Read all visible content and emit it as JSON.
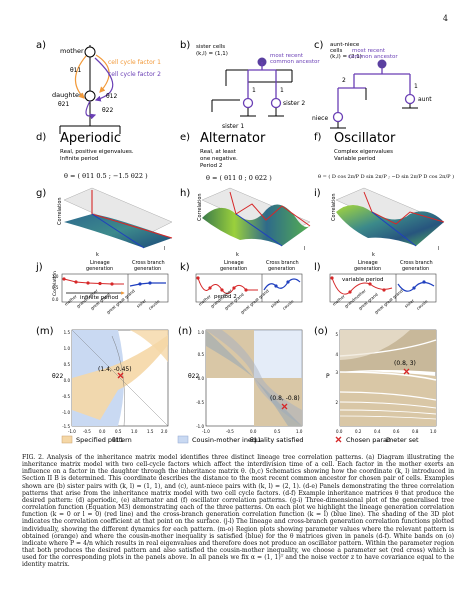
{
  "page_number": "4",
  "panels": {
    "a": {
      "letter": "a)",
      "mother": "mother",
      "daughter": "daughter",
      "theta11": "θ11",
      "theta21": "θ21",
      "theta12": "θ12",
      "theta22": "θ22",
      "factor1": "cell cycle factor 1",
      "factor2": "cell cycle factor 2"
    },
    "b": {
      "letter": "b)",
      "title1": "sister cells",
      "title2": "(k,l) = (1,1)",
      "ancestor1": "most recent",
      "ancestor2": "common ancestor",
      "sister1": "sister 1",
      "sister2": "sister 2",
      "edge1": "1",
      "edge2": "1"
    },
    "c": {
      "letter": "c)",
      "title1": "aunt-niece",
      "title2": "cells",
      "title3": "(k,l) = (2,1)",
      "ancestor1": "most recent",
      "ancestor2": "common ancestor",
      "aunt": "aunt",
      "niece": "niece",
      "edge2": "2",
      "edge1": "1"
    },
    "d": {
      "letter": "d)",
      "title": "Aperiodic",
      "desc1": "Real, positive eigenvalues.",
      "desc2": "Infinite period",
      "matrix": "θ = ( θ11  0.5 ; −1.5  θ22 )"
    },
    "e": {
      "letter": "e)",
      "title": "Alternator",
      "desc1": "Real, at least",
      "desc2": "one negative.",
      "desc3": "Period 2",
      "matrix": "θ = ( θ11  0 ; 0  θ22 )"
    },
    "f": {
      "letter": "f)",
      "title": "Oscillator",
      "desc1": "Complex eigenvalues",
      "desc2": "Variable period",
      "matrix": "θ = ( D cos 2π/P   D sin 2π/P ; −D sin 2π/P   D cos 2π/P )"
    },
    "g": {
      "letter": "g)",
      "zlabel": "Correlation",
      "xl": "k",
      "yl": "l"
    },
    "h": {
      "letter": "h)",
      "zlabel": "Correlation",
      "xl": "k",
      "yl": "l"
    },
    "i": {
      "letter": "i)",
      "zlabel": "Correlation",
      "xl": "k",
      "yl": "l"
    },
    "j": {
      "letter": "j)",
      "lin": "Lineage",
      "gen": "generation",
      "cross": "Cross branch",
      "cgen": "generation",
      "ylabel": "Correlation",
      "period": "infinite period",
      "yticks": [
        "1.0",
        "0.5",
        "0.0"
      ]
    },
    "k": {
      "letter": "k)",
      "lin": "Lineage",
      "gen": "generation",
      "cross": "Cross branch",
      "cgen": "generation",
      "period": "period 2"
    },
    "l": {
      "letter": "l)",
      "lin": "Lineage",
      "gen": "generation",
      "cross": "Cross branch",
      "cgen": "generation",
      "period": "variable period"
    },
    "xcats": [
      "mother",
      "grandmother",
      "great grand",
      "great great grand",
      "sister",
      "cousin"
    ],
    "m": {
      "letter": "(m)",
      "xlabel": "θ11",
      "ylabel": "θ22",
      "point": "(1.4, -0.45)",
      "xticks": [
        "-1.0",
        "-0.5",
        "0.0",
        "0.5",
        "1.0",
        "1.5",
        "2.0"
      ],
      "yticks": [
        "1.5",
        "1.0",
        "0.5",
        "0.0",
        "-0.5",
        "-1.0",
        "-1.5"
      ]
    },
    "n": {
      "letter": "(n)",
      "xlabel": "θ11",
      "ylabel": "θ22",
      "point": "(0.8, -0.8)",
      "xticks": [
        "-1.0",
        "-0.5",
        "0.0",
        "0.5",
        "1.0"
      ],
      "yticks": [
        "1.0",
        "0.5",
        "0.0",
        "-0.5",
        "-1.0"
      ]
    },
    "o": {
      "letter": "(o)",
      "xlabel": "D",
      "ylabel": "P",
      "point": "(0.8, 3)",
      "xticks": [
        "0.0",
        "0.2",
        "0.4",
        "0.6",
        "0.8",
        "1.0"
      ],
      "yticks": [
        "5",
        "4",
        "3",
        "2"
      ]
    }
  },
  "legend": {
    "specified": "Specified pattern",
    "cousin": "Cousin-mother inequality satisfied",
    "chosen": "Chosen parameter set"
  },
  "colors": {
    "orange": "#f29a3a",
    "purple": "#6a3fb5",
    "blue": "#1f3fbf",
    "red": "#d62728",
    "tan": "#f5d7a6",
    "lightblue": "#c9d9f2"
  },
  "caption": "FIG. 2. Analysis of the inheritance matrix model identifies three distinct lineage tree correlation patterns. (a) Diagram illustrating the inheritance matrix model with two cell-cycle factors which affect the interdivision time of a cell. Each factor in the mother exerts an influence on a factor in the daughter through the inheritance matrix θ. (b,c) Schematics showing how the coordinate (k, l) introduced in Section II B is determined. This coordinate describes the distance to the most recent common ancestor for chosen pair of cells. Examples shown are (b) sister pairs with (k, l) = (1, 1), and (c), aunt-niece pairs with (k, l) = (2, 1). (d-e) Panels demonstrating the three correlation patterns that arise from the inheritance matrix model with two cell cycle factors. (d-f) Example inheritance matrices θ that produce the desired pattern: (d) aperiodic, (e) alternator and (f) oscillator correlation patterns. (g-i) Three-dimensional plot of the generalised tree correlation function (Equation M3) demonstrating each of the three patterns. On each plot we highlight the lineage generation correlation function (k = 0 or l = 0) (red line) and the cross-branch generation correlation function (k = l) (blue line). The shading of the 3D plot indicates the correlation coefficient at that point on the surface. (j-l) The lineage and cross-branch generation correlation functions plotted individually, showing the different dynamics for each pattern. (m-o) Region plots showing parameter values where the relevant pattern is obtained (orange) and where the cousin-mother inequality is satisfied (blue) for the θ matrices given in panels (d-f). White bands on (o) indicate where P = 4/n which results in real eigenvalues and therefore does not produce an oscillator pattern. Within the parameter region that both produces the desired pattern and also satisfied the cousin-mother inequality, we choose a parameter set (red cross) which is used for the corresponding plots in the panels above. In all panels we fix α = (1, 1)ᵀ and the noise vector z to have covariance equal to the identity matrix."
}
